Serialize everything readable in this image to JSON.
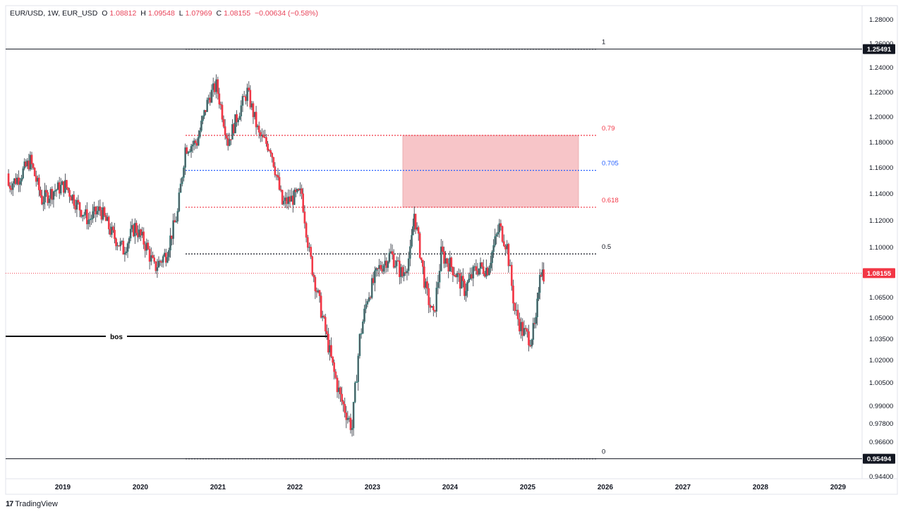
{
  "legend": {
    "symbol": "EUR/USD, 1W, EUR_USD",
    "o_label": "O",
    "o": "1.08812",
    "h_label": "H",
    "h": "1.09548",
    "l_label": "L",
    "l": "1.07969",
    "c_label": "C",
    "c": "1.08155",
    "change": "−0.00634 (−0.58%)"
  },
  "brand": {
    "logo": "17",
    "name": "TradingView"
  },
  "chart_data": {
    "type": "candlestick",
    "x_tick_labels": [
      "2019",
      "2020",
      "2021",
      "2022",
      "2023",
      "2024",
      "2025",
      "2026",
      "2027",
      "2028",
      "2029"
    ],
    "y_tick_labels": [
      "1.28000",
      "1.26000",
      "1.24000",
      "1.22000",
      "1.20000",
      "1.18000",
      "1.16000",
      "1.14000",
      "1.12000",
      "1.10000",
      "1.06500",
      "1.05000",
      "1.03500",
      "1.02000",
      "1.00500",
      "0.99000",
      "0.97800",
      "0.96600",
      "0.94400"
    ],
    "ylim": [
      0.944,
      1.28
    ],
    "price_badges": [
      {
        "value": "1.25491",
        "color": "#131722"
      },
      {
        "value": "1.08155",
        "color": "#f23645"
      },
      {
        "value": "0.95494",
        "color": "#131722"
      }
    ],
    "horizontal_lines": [
      {
        "price": 1.25491,
        "label": "1"
      },
      {
        "price": 0.95494,
        "label": "0"
      },
      {
        "price": 1.035,
        "label": "bos"
      }
    ],
    "fib_levels": [
      {
        "label": "1",
        "value": 1.25491,
        "color": "#131722"
      },
      {
        "label": "0.79",
        "value": 1.185,
        "color": "#f23645"
      },
      {
        "label": "0.705",
        "value": 1.1575,
        "color": "#2962ff"
      },
      {
        "label": "0.618",
        "value": 1.1295,
        "color": "#f23645"
      },
      {
        "label": "0.5",
        "value": 1.095,
        "color": "#131722"
      },
      {
        "label": "0",
        "value": 0.95494,
        "color": "#131722"
      }
    ],
    "zone": {
      "from": 1.1295,
      "to": 1.185,
      "color": "#f7c5c8"
    },
    "current_price": 1.08155,
    "colors": {
      "up": "#26a69a",
      "down": "#f23645",
      "wick": "#2a2e39"
    },
    "series": [
      {
        "date": "2018.30",
        "close": 1.145
      },
      {
        "date": "2018.45",
        "close": 1.152
      },
      {
        "date": "2018.60",
        "close": 1.165
      },
      {
        "date": "2018.75",
        "close": 1.135
      },
      {
        "date": "2018.90",
        "close": 1.142
      },
      {
        "date": "2019.05",
        "close": 1.146
      },
      {
        "date": "2019.20",
        "close": 1.132
      },
      {
        "date": "2019.35",
        "close": 1.12
      },
      {
        "date": "2019.50",
        "close": 1.128
      },
      {
        "date": "2019.65",
        "close": 1.11
      },
      {
        "date": "2019.80",
        "close": 1.098
      },
      {
        "date": "2019.95",
        "close": 1.115
      },
      {
        "date": "2020.10",
        "close": 1.1
      },
      {
        "date": "2020.20",
        "close": 1.085
      },
      {
        "date": "2020.35",
        "close": 1.095
      },
      {
        "date": "2020.50",
        "close": 1.125
      },
      {
        "date": "2020.60",
        "close": 1.175
      },
      {
        "date": "2020.75",
        "close": 1.18
      },
      {
        "date": "2020.90",
        "close": 1.215
      },
      {
        "date": "2021.00",
        "close": 1.225
      },
      {
        "date": "2021.15",
        "close": 1.18
      },
      {
        "date": "2021.30",
        "close": 1.205
      },
      {
        "date": "2021.40",
        "close": 1.22
      },
      {
        "date": "2021.55",
        "close": 1.185
      },
      {
        "date": "2021.70",
        "close": 1.175
      },
      {
        "date": "2021.85",
        "close": 1.132
      },
      {
        "date": "2021.95",
        "close": 1.135
      },
      {
        "date": "2022.10",
        "close": 1.14
      },
      {
        "date": "2022.20",
        "close": 1.095
      },
      {
        "date": "2022.35",
        "close": 1.055
      },
      {
        "date": "2022.50",
        "close": 1.015
      },
      {
        "date": "2022.60",
        "close": 0.995
      },
      {
        "date": "2022.75",
        "close": 0.975
      },
      {
        "date": "2022.85",
        "close": 1.035
      },
      {
        "date": "2022.95",
        "close": 1.065
      },
      {
        "date": "2023.10",
        "close": 1.085
      },
      {
        "date": "2023.25",
        "close": 1.095
      },
      {
        "date": "2023.40",
        "close": 1.08
      },
      {
        "date": "2023.50",
        "close": 1.095
      },
      {
        "date": "2023.55",
        "close": 1.125
      },
      {
        "date": "2023.70",
        "close": 1.07
      },
      {
        "date": "2023.80",
        "close": 1.05
      },
      {
        "date": "2023.90",
        "close": 1.095
      },
      {
        "date": "2024.05",
        "close": 1.085
      },
      {
        "date": "2024.20",
        "close": 1.07
      },
      {
        "date": "2024.35",
        "close": 1.085
      },
      {
        "date": "2024.50",
        "close": 1.085
      },
      {
        "date": "2024.65",
        "close": 1.115
      },
      {
        "date": "2024.75",
        "close": 1.1
      },
      {
        "date": "2024.85",
        "close": 1.055
      },
      {
        "date": "2024.95",
        "close": 1.04
      },
      {
        "date": "2025.05",
        "close": 1.035
      },
      {
        "date": "2025.12",
        "close": 1.045
      },
      {
        "date": "2025.17",
        "close": 1.085
      },
      {
        "date": "2025.22",
        "close": 1.08155
      }
    ]
  }
}
